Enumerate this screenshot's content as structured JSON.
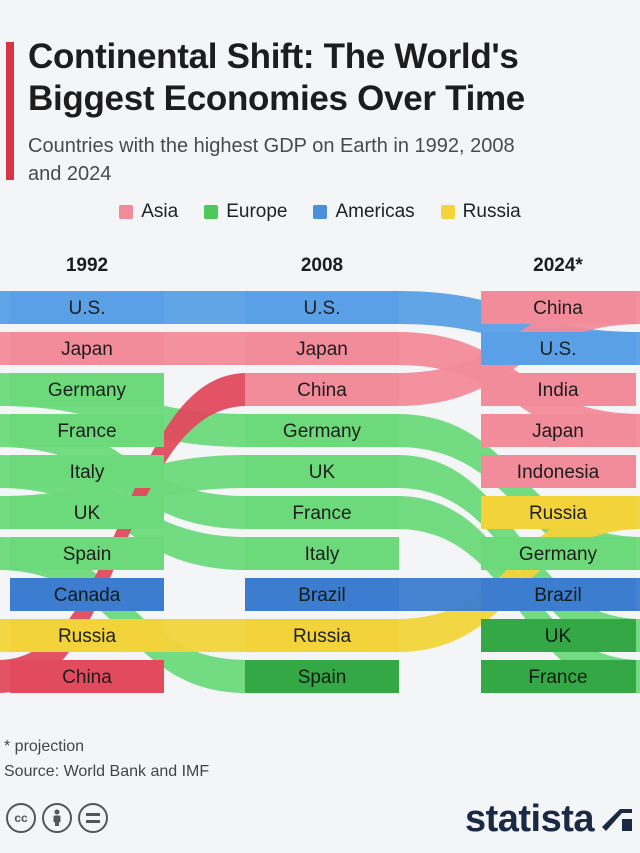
{
  "header": {
    "title": "Continental Shift: The World's Biggest Economies Over Time",
    "subtitle": "Countries with the highest GDP on Earth in 1992, 2008 and 2024"
  },
  "legend": [
    {
      "label": "Asia",
      "color": "#f18a99"
    },
    {
      "label": "Europe",
      "color": "#4cc95a"
    },
    {
      "label": "Americas",
      "color": "#4a90d9"
    },
    {
      "label": "Russia",
      "color": "#f2d43a"
    }
  ],
  "colors": {
    "asia": "#f28b9a",
    "asia_dark": "#e24a5e",
    "europe": "#6cd97a",
    "europe_dark": "#33a844",
    "americas": "#5aa0e6",
    "americas_dark": "#3c7dd0",
    "russia": "#f2d43a",
    "accent": "#d93444",
    "brand": "#1a2a44"
  },
  "chart_data": {
    "type": "table",
    "years": [
      "1992",
      "2008",
      "2024*"
    ],
    "rankings": {
      "1992": [
        "U.S.",
        "Japan",
        "Germany",
        "France",
        "Italy",
        "UK",
        "Spain",
        "Canada",
        "Russia",
        "China"
      ],
      "2008": [
        "U.S.",
        "Japan",
        "China",
        "Germany",
        "UK",
        "France",
        "Italy",
        "Brazil",
        "Russia",
        "Spain"
      ],
      "2024*": [
        "China",
        "U.S.",
        "India",
        "Japan",
        "Indonesia",
        "Russia",
        "Germany",
        "Brazil",
        "UK",
        "France"
      ]
    },
    "regions": {
      "U.S.": "Americas",
      "Canada": "Americas",
      "Brazil": "Americas",
      "Japan": "Asia",
      "China": "Asia",
      "India": "Asia",
      "Indonesia": "Asia",
      "Germany": "Europe",
      "France": "Europe",
      "Italy": "Europe",
      "UK": "Europe",
      "Spain": "Europe",
      "Russia": "Russia"
    }
  },
  "footer": {
    "footnote": "* projection",
    "source": "Source: World Bank and IMF",
    "brand": "statista",
    "cc_icons": [
      "cc-icon",
      "by-person-icon",
      "equals-icon"
    ]
  }
}
